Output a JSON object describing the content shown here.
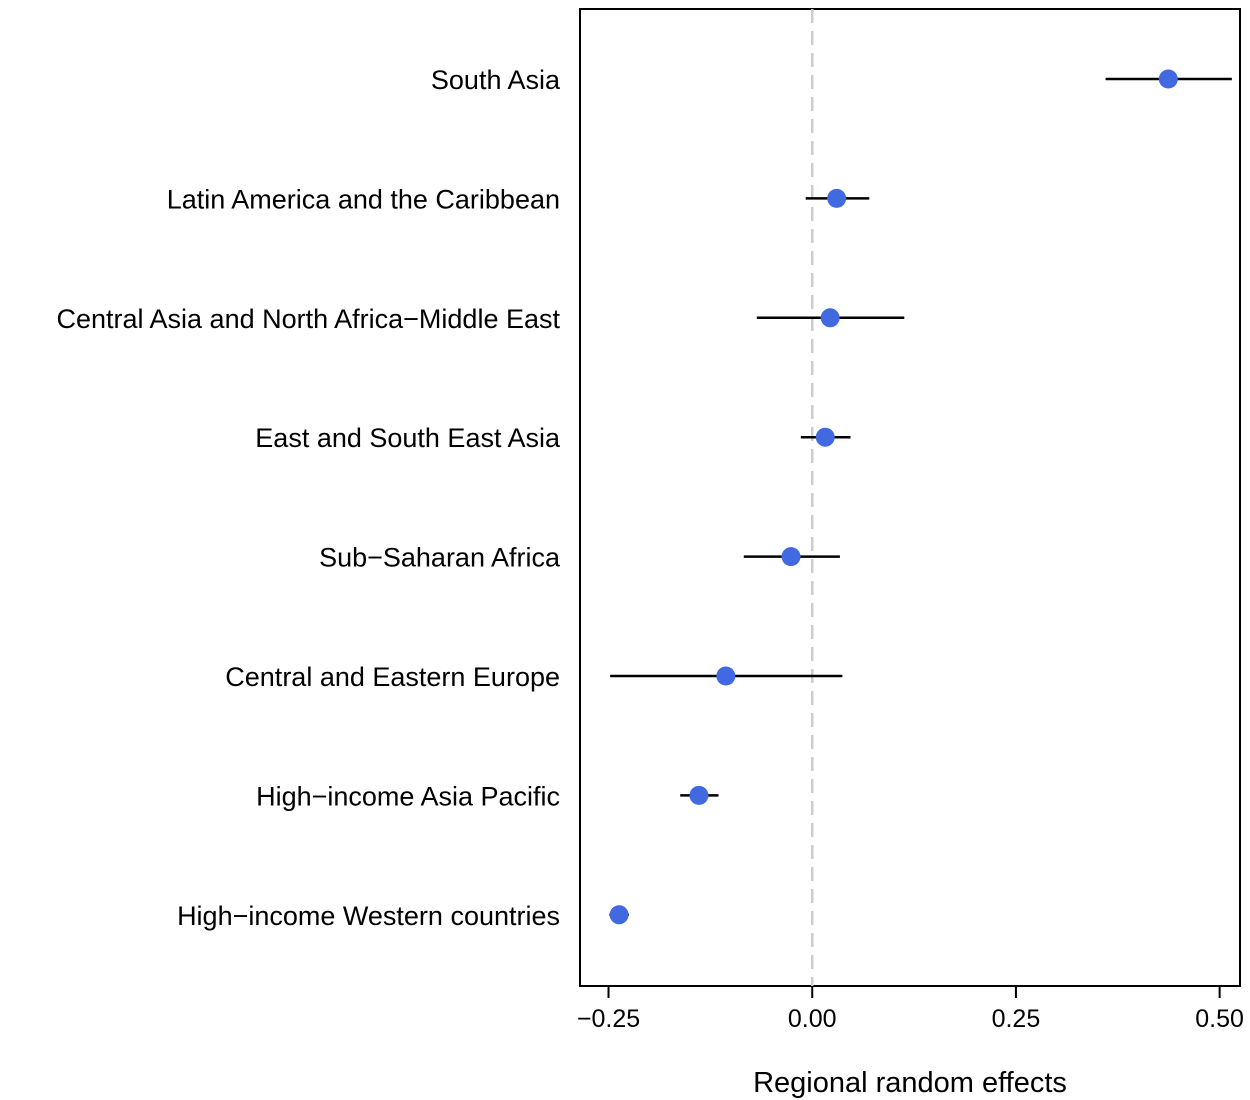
{
  "chart_data": {
    "type": "scatter",
    "title": "",
    "xlabel": "Regional random effects",
    "ylabel": "",
    "xlim": [
      -0.285,
      0.525
    ],
    "xticks": [
      -0.25,
      0.0,
      0.25,
      0.5
    ],
    "xtick_labels": [
      "−0.25",
      "0.00",
      "0.25",
      "0.50"
    ],
    "reference_line": {
      "x": 0,
      "style": "dashed",
      "color": "#cccccc"
    },
    "point_color": "#4169E1",
    "grid": false,
    "legend": "none",
    "categories": [
      "South Asia",
      "Latin America and the Caribbean",
      "Central Asia and North Africa−Middle East",
      "East and South East Asia",
      "Sub−Saharan Africa",
      "Central and Eastern Europe",
      "High−income Asia Pacific",
      "High−income Western countries"
    ],
    "values": [
      0.437,
      0.03,
      0.022,
      0.016,
      -0.026,
      -0.106,
      -0.139,
      -0.237
    ],
    "lower": [
      0.36,
      -0.008,
      -0.068,
      -0.014,
      -0.084,
      -0.248,
      -0.162,
      -0.249
    ],
    "upper": [
      0.515,
      0.07,
      0.113,
      0.047,
      0.034,
      0.037,
      -0.115,
      -0.225
    ]
  }
}
